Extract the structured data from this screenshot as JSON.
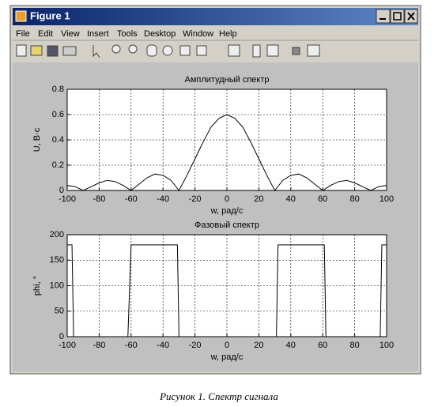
{
  "window": {
    "title": "Figure 1",
    "menu": [
      "File",
      "Edit",
      "View",
      "Insert",
      "Tools",
      "Desktop",
      "Window",
      "Help"
    ]
  },
  "chart_data": [
    {
      "type": "line",
      "title": "Амплитудный спектр",
      "xlabel": "w, рад/с",
      "ylabel": "U, B·c",
      "x": [
        -100,
        -95,
        -90,
        -85,
        -80,
        -75,
        -70,
        -65,
        -60,
        -55,
        -50,
        -45,
        -40,
        -35,
        -30,
        -25,
        -20,
        -15,
        -10,
        -5,
        0,
        5,
        10,
        15,
        20,
        25,
        30,
        35,
        40,
        45,
        50,
        55,
        60,
        65,
        70,
        75,
        80,
        85,
        90,
        95,
        100
      ],
      "values": [
        0.04,
        0.03,
        0,
        0.03,
        0.06,
        0.08,
        0.07,
        0.04,
        0,
        0.05,
        0.1,
        0.13,
        0.12,
        0.08,
        0,
        0.12,
        0.25,
        0.38,
        0.5,
        0.57,
        0.6,
        0.57,
        0.5,
        0.38,
        0.25,
        0.12,
        0,
        0.08,
        0.12,
        0.13,
        0.1,
        0.05,
        0,
        0.04,
        0.07,
        0.08,
        0.06,
        0.03,
        0,
        0.03,
        0.04
      ],
      "color": "#000000",
      "xlim": [
        -100,
        100
      ],
      "xticks": [
        -100,
        -80,
        -60,
        -40,
        -20,
        0,
        20,
        40,
        60,
        80,
        100
      ],
      "ylim": [
        0,
        0.8
      ],
      "yticks": [
        0,
        0.2,
        0.4,
        0.6,
        0.8
      ],
      "grid": true
    },
    {
      "type": "line",
      "title": "Фазовый спектр",
      "xlabel": "w, рад/с",
      "ylabel": "phi, °",
      "x": [
        -100,
        -97,
        -96,
        -62,
        -60,
        -31,
        -30,
        31,
        32,
        61,
        62,
        96,
        97,
        100
      ],
      "values": [
        180,
        180,
        0,
        0,
        180,
        180,
        0,
        0,
        180,
        180,
        0,
        0,
        180,
        180
      ],
      "color": "#000000",
      "xlim": [
        -100,
        100
      ],
      "xticks": [
        -100,
        -80,
        -60,
        -40,
        -20,
        0,
        20,
        40,
        60,
        80,
        100
      ],
      "ylim": [
        0,
        200
      ],
      "yticks": [
        0,
        50,
        100,
        150,
        200
      ],
      "grid": true
    }
  ],
  "caption": "Рисунок 1. Спектр сигнала"
}
